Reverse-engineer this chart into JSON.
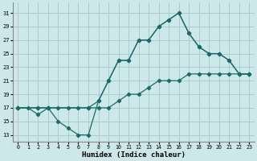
{
  "xlabel": "Humidex (Indice chaleur)",
  "background_color": "#cce8e8",
  "grid_color": "#aacccc",
  "line_color": "#1a6b6b",
  "xlim": [
    -0.5,
    23.5
  ],
  "ylim": [
    12,
    32.5
  ],
  "xticks": [
    0,
    1,
    2,
    3,
    4,
    5,
    6,
    7,
    8,
    9,
    10,
    11,
    12,
    13,
    14,
    15,
    16,
    17,
    18,
    19,
    20,
    21,
    22,
    23
  ],
  "yticks": [
    13,
    15,
    17,
    19,
    21,
    23,
    25,
    27,
    29,
    31
  ],
  "curve1_x": [
    0,
    1,
    2,
    3,
    4,
    5,
    6,
    7,
    8,
    9,
    10,
    11,
    12,
    13,
    14,
    15,
    16,
    17,
    18,
    19,
    20,
    21,
    22,
    23
  ],
  "curve1_y": [
    17,
    17,
    16,
    17,
    15,
    14,
    13,
    13,
    18,
    21,
    24,
    24,
    27,
    27,
    29,
    30,
    31,
    28,
    26,
    25,
    25,
    24,
    22,
    22
  ],
  "curve2_x": [
    0,
    2,
    3,
    4,
    5,
    6,
    7,
    8,
    9,
    10,
    11,
    12,
    13,
    14,
    15,
    16,
    17,
    18,
    19,
    20,
    21,
    22,
    23
  ],
  "curve2_y": [
    17,
    17,
    17,
    17,
    17,
    17,
    17,
    17,
    17,
    18,
    19,
    19,
    20,
    21,
    21,
    21,
    22,
    22,
    22,
    22,
    22,
    22,
    22
  ],
  "curve3_x": [
    0,
    2,
    3,
    7,
    8,
    9,
    10,
    11,
    12,
    13,
    14,
    15,
    16,
    17,
    18,
    19,
    20,
    21,
    22,
    23
  ],
  "curve3_y": [
    17,
    17,
    17,
    17,
    18,
    21,
    24,
    24,
    27,
    27,
    29,
    30,
    31,
    28,
    26,
    25,
    25,
    24,
    22,
    22
  ]
}
